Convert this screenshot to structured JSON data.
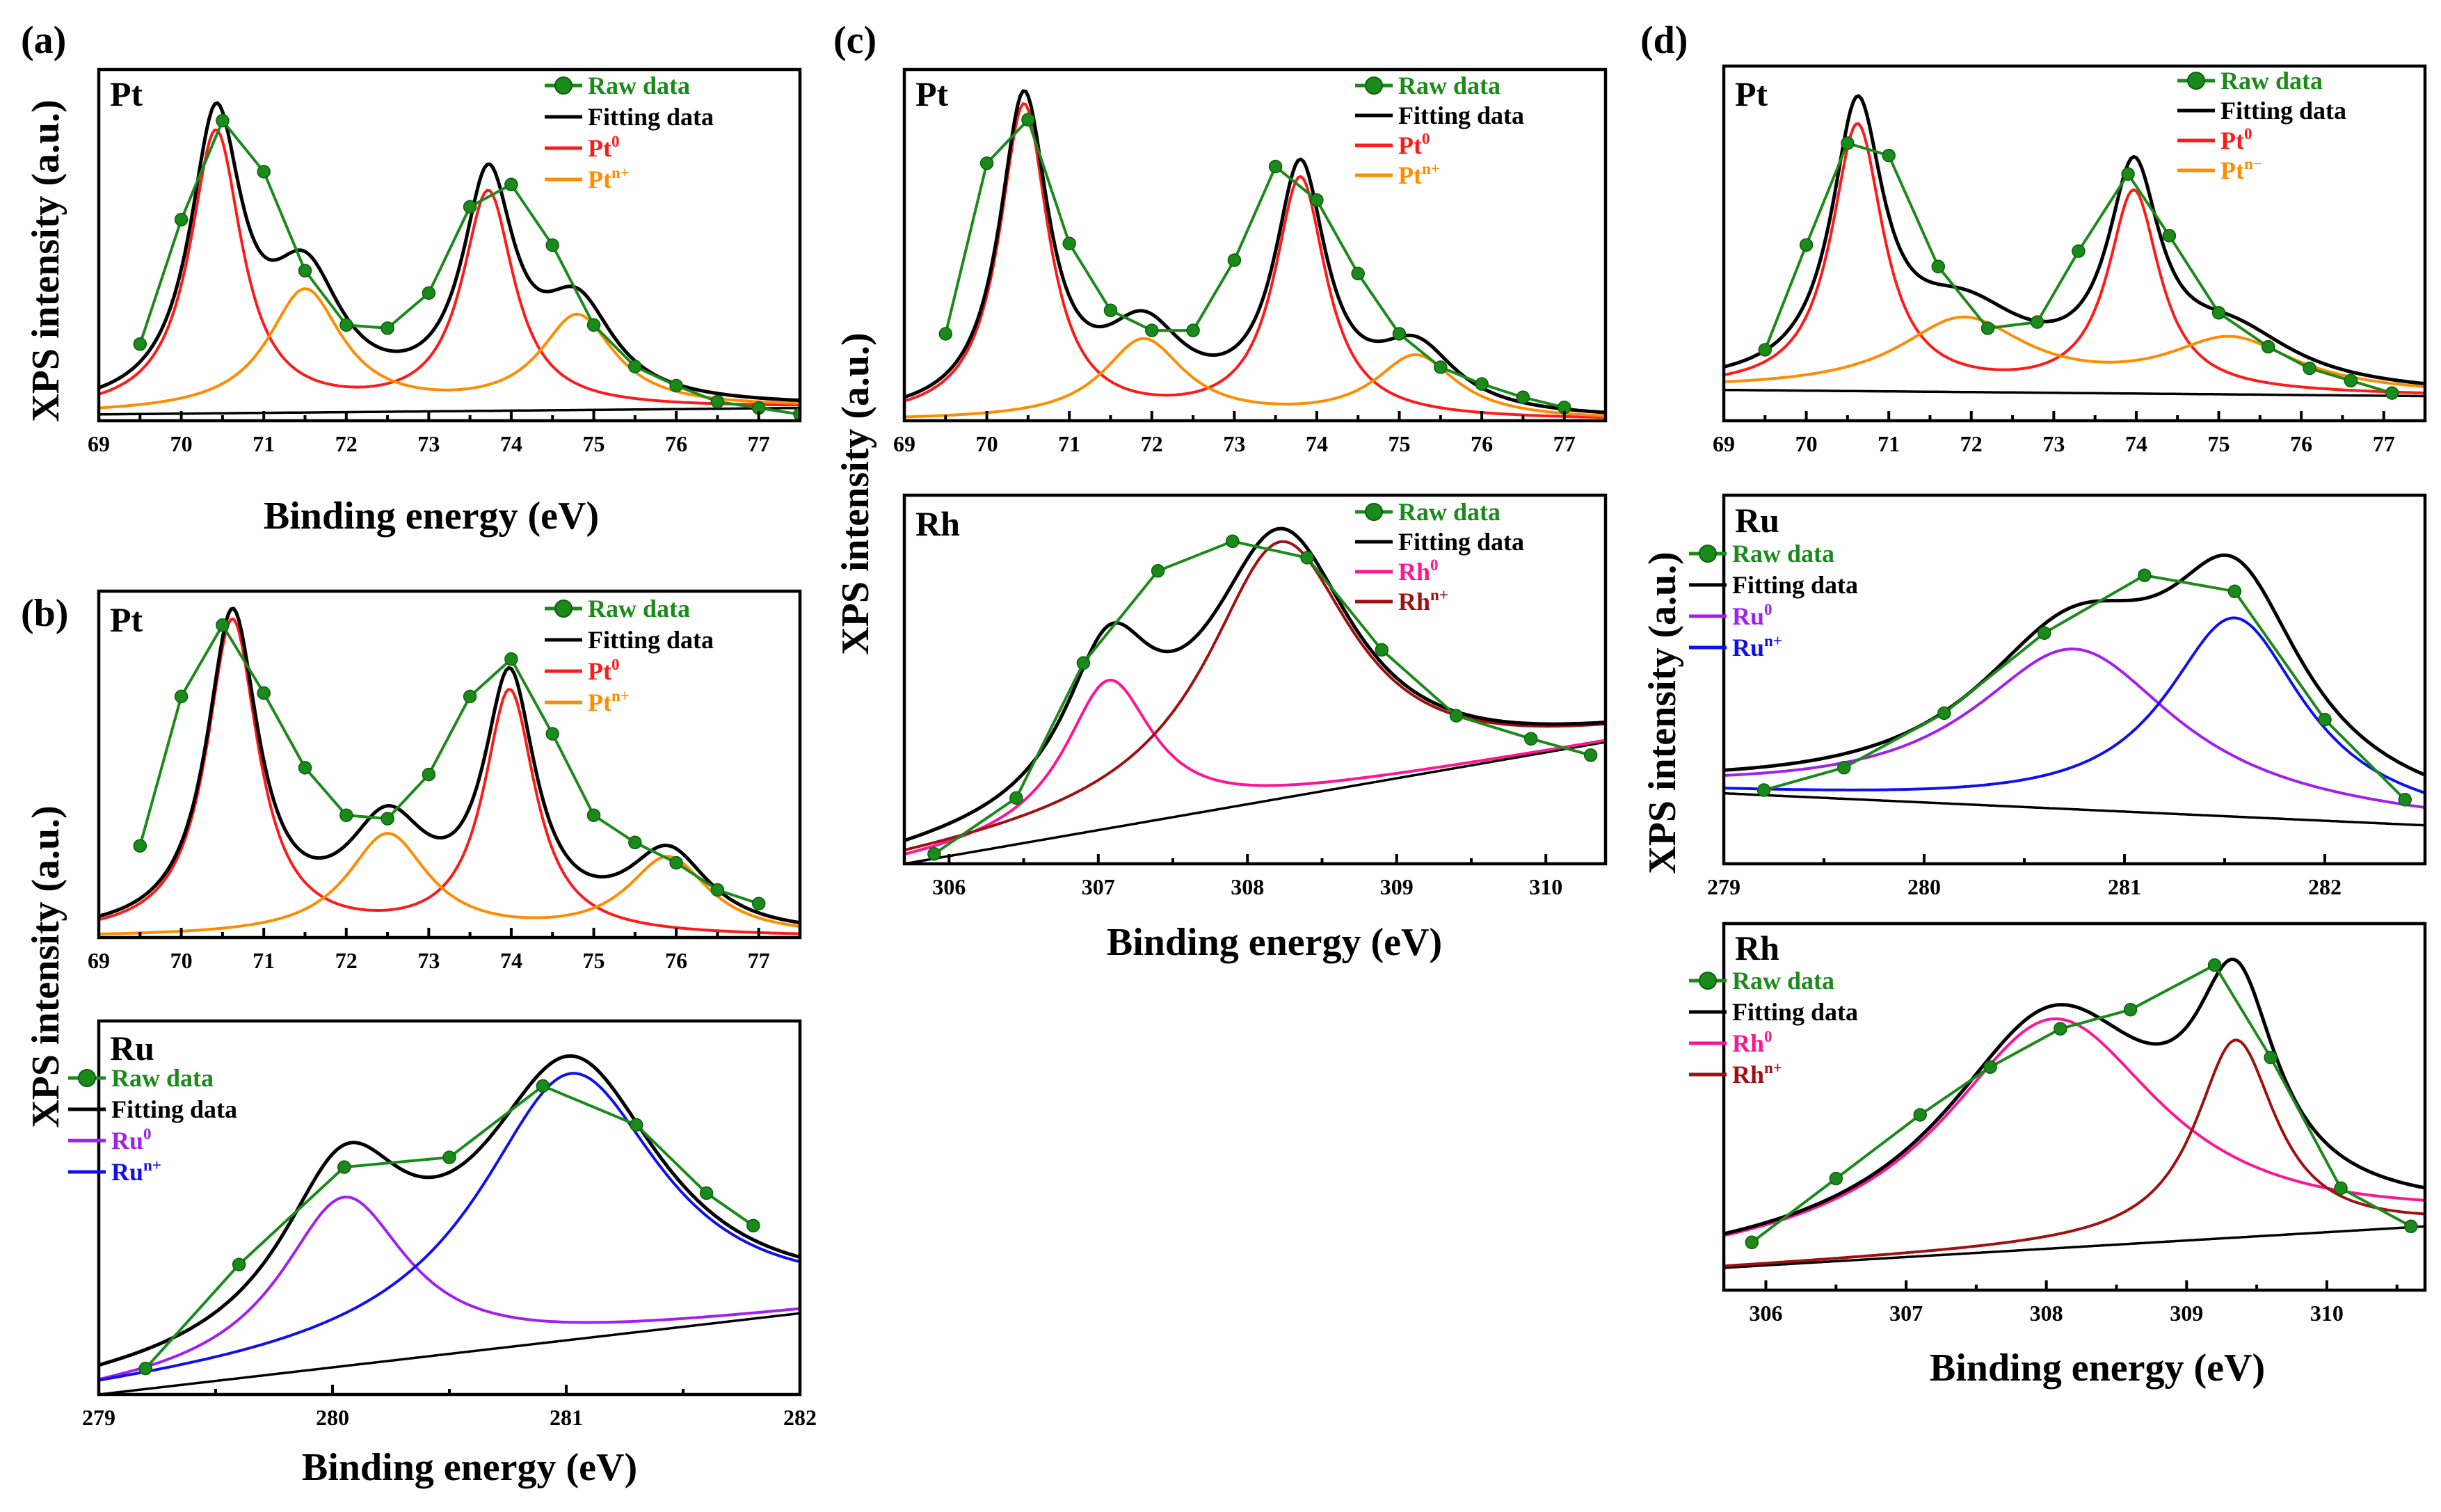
{
  "panel_labels": [
    "(a)",
    "(b)",
    "(c)",
    "(d)"
  ],
  "axis_titles": {
    "ylabel": "XPS intensity (a.u.)",
    "xlabel": "Binding energy (eV)"
  },
  "legend": {
    "raw": "Raw data",
    "fit": "Fitting data",
    "pt0": "Pt",
    "pt0_sup": "0",
    "ptn": "Pt",
    "ptn_sup": "n+",
    "ptn_d": "Pt",
    "ptn_d_sup": "n−",
    "ru0": "Ru",
    "ru0_sup": "0",
    "run": "Ru",
    "run_sup": "n+",
    "rh0": "Rh",
    "rh0_sup": "0",
    "rhn": "Rh",
    "rhn_sup": "n+"
  },
  "colors": {
    "raw": "#1a8a1a",
    "fit": "#000000",
    "pt0": "#ff1a1a",
    "ptn": "#ff8c00",
    "ru0": "#a020f0",
    "run": "#1010ee",
    "rh0": "#ff1493",
    "rhn": "#a01010",
    "baseline": "#000000"
  },
  "chart_data": [
    {
      "id": "a_pt",
      "panel": "(a)",
      "element": "Pt",
      "type": "line",
      "xlabel": "Binding energy (eV)",
      "ylabel": "XPS intensity (a.u.)",
      "xlim": [
        69,
        77.5
      ],
      "ylim": [
        0,
        1.1
      ],
      "xticks": [
        69,
        70,
        71,
        72,
        73,
        74,
        75,
        76,
        77
      ],
      "baseline": [
        0.02,
        0.04
      ],
      "components": [
        {
          "key": "pt0",
          "peaks": [
            {
              "c": 70.42,
              "a": 0.88,
              "w": 0.38
            },
            {
              "c": 73.72,
              "a": 0.68,
              "w": 0.38
            }
          ]
        },
        {
          "key": "ptn",
          "peaks": [
            {
              "c": 71.5,
              "a": 0.38,
              "w": 0.55
            },
            {
              "c": 74.8,
              "a": 0.29,
              "w": 0.55
            }
          ]
        }
      ],
      "raw_points": [
        [
          69.5,
          0.24
        ],
        [
          70.0,
          0.63
        ],
        [
          70.5,
          0.94
        ],
        [
          71.0,
          0.78
        ],
        [
          71.5,
          0.47
        ],
        [
          72.0,
          0.3
        ],
        [
          72.5,
          0.29
        ],
        [
          73.0,
          0.4
        ],
        [
          73.5,
          0.67
        ],
        [
          74.0,
          0.74
        ],
        [
          74.5,
          0.55
        ],
        [
          75.0,
          0.3
        ],
        [
          75.5,
          0.17
        ],
        [
          76.0,
          0.11
        ],
        [
          76.5,
          0.06
        ],
        [
          77.0,
          0.04
        ],
        [
          77.5,
          0.02
        ]
      ]
    },
    {
      "id": "b_pt",
      "panel": "(b)",
      "element": "Pt",
      "type": "line",
      "xlabel": "",
      "ylabel": "XPS intensity (a.u.)",
      "xlim": [
        69,
        77.5
      ],
      "ylim": [
        0,
        1.02
      ],
      "xticks": [
        69,
        70,
        71,
        72,
        73,
        74,
        75,
        76,
        77
      ],
      "baseline": [
        0.0,
        0.0
      ],
      "components": [
        {
          "key": "pt0",
          "peaks": [
            {
              "c": 70.62,
              "a": 0.93,
              "w": 0.38
            },
            {
              "c": 73.98,
              "a": 0.72,
              "w": 0.38
            }
          ]
        },
        {
          "key": "ptn",
          "peaks": [
            {
              "c": 72.5,
              "a": 0.3,
              "w": 0.6
            },
            {
              "c": 75.9,
              "a": 0.23,
              "w": 0.6
            }
          ]
        }
      ],
      "raw_points": [
        [
          69.5,
          0.27
        ],
        [
          70.0,
          0.71
        ],
        [
          70.5,
          0.92
        ],
        [
          71.0,
          0.72
        ],
        [
          71.5,
          0.5
        ],
        [
          72.0,
          0.36
        ],
        [
          72.5,
          0.35
        ],
        [
          73.0,
          0.48
        ],
        [
          73.5,
          0.71
        ],
        [
          74.0,
          0.82
        ],
        [
          74.5,
          0.6
        ],
        [
          75.0,
          0.36
        ],
        [
          75.5,
          0.28
        ],
        [
          76.0,
          0.22
        ],
        [
          76.5,
          0.14
        ],
        [
          77.0,
          0.1
        ]
      ]
    },
    {
      "id": "b_ru",
      "panel": "(b)",
      "element": "Ru",
      "type": "line",
      "xlabel": "Binding energy (eV)",
      "ylabel": "",
      "xlim": [
        279,
        282
      ],
      "ylim": [
        0,
        1.15
      ],
      "xticks": [
        279,
        280,
        281,
        282
      ],
      "baseline": [
        0.0,
        0.25
      ],
      "components": [
        {
          "key": "ru0",
          "peaks": [
            {
              "c": 280.05,
              "a": 0.52,
              "w": 0.33
            }
          ]
        },
        {
          "key": "run",
          "peaks": [
            {
              "c": 281.02,
              "a": 0.82,
              "w": 0.48
            }
          ]
        }
      ],
      "raw_points": [
        [
          279.2,
          0.08
        ],
        [
          279.6,
          0.4
        ],
        [
          280.05,
          0.7
        ],
        [
          280.5,
          0.73
        ],
        [
          280.9,
          0.95
        ],
        [
          281.3,
          0.83
        ],
        [
          281.6,
          0.62
        ],
        [
          281.8,
          0.52
        ]
      ]
    },
    {
      "id": "c_pt",
      "panel": "(c)",
      "element": "Pt",
      "type": "line",
      "xlabel": "",
      "ylabel": "XPS intensity (a.u.)",
      "xlim": [
        69,
        77.5
      ],
      "ylim": [
        0,
        1.05
      ],
      "xticks": [
        69,
        70,
        71,
        72,
        73,
        74,
        75,
        76,
        77
      ],
      "baseline": [
        0.0,
        0.0
      ],
      "components": [
        {
          "key": "pt0",
          "peaks": [
            {
              "c": 70.45,
              "a": 0.94,
              "w": 0.36
            },
            {
              "c": 73.8,
              "a": 0.72,
              "w": 0.38
            }
          ]
        },
        {
          "key": "ptn",
          "peaks": [
            {
              "c": 71.9,
              "a": 0.24,
              "w": 0.6
            },
            {
              "c": 75.2,
              "a": 0.19,
              "w": 0.6
            }
          ]
        }
      ],
      "raw_points": [
        [
          69.5,
          0.26
        ],
        [
          70.0,
          0.77
        ],
        [
          70.5,
          0.9
        ],
        [
          71.0,
          0.53
        ],
        [
          71.5,
          0.33
        ],
        [
          72.0,
          0.27
        ],
        [
          72.5,
          0.27
        ],
        [
          73.0,
          0.48
        ],
        [
          73.5,
          0.76
        ],
        [
          74.0,
          0.66
        ],
        [
          74.5,
          0.44
        ],
        [
          75.0,
          0.26
        ],
        [
          75.5,
          0.16
        ],
        [
          76.0,
          0.11
        ],
        [
          76.5,
          0.07
        ],
        [
          77.0,
          0.04
        ]
      ]
    },
    {
      "id": "c_rh",
      "panel": "(c)",
      "element": "Rh",
      "type": "line",
      "xlabel": "Binding energy (eV)",
      "ylabel": "",
      "xlim": [
        305.7,
        310.4
      ],
      "ylim": [
        0,
        1.12
      ],
      "xticks": [
        306,
        307,
        308,
        309,
        310
      ],
      "baseline": [
        0.0,
        0.37
      ],
      "components": [
        {
          "key": "rh0",
          "peaks": [
            {
              "c": 307.07,
              "a": 0.45,
              "w": 0.36
            }
          ]
        },
        {
          "key": "rhn",
          "peaks": [
            {
              "c": 308.22,
              "a": 0.78,
              "w": 0.6
            }
          ]
        }
      ],
      "raw_points": [
        [
          305.9,
          0.03
        ],
        [
          306.45,
          0.2
        ],
        [
          306.9,
          0.61
        ],
        [
          307.4,
          0.89
        ],
        [
          307.9,
          0.98
        ],
        [
          308.4,
          0.93
        ],
        [
          308.9,
          0.65
        ],
        [
          309.4,
          0.45
        ],
        [
          309.9,
          0.38
        ],
        [
          310.3,
          0.33
        ]
      ]
    },
    {
      "id": "d_pt",
      "panel": "(d)",
      "element": "Pt",
      "type": "line",
      "xlabel": "",
      "ylabel": "",
      "xlim": [
        69,
        77.5
      ],
      "ylim": [
        0,
        1.15
      ],
      "xticks": [
        69,
        70,
        71,
        72,
        73,
        74,
        75,
        76,
        77
      ],
      "baseline": [
        0.1,
        0.08
      ],
      "components": [
        {
          "key": "pt0",
          "peaks": [
            {
              "c": 70.62,
              "a": 0.86,
              "w": 0.38
            },
            {
              "c": 73.97,
              "a": 0.65,
              "w": 0.38
            }
          ]
        },
        {
          "key": "ptn",
          "peaks": [
            {
              "c": 71.9,
              "a": 0.23,
              "w": 0.95
            },
            {
              "c": 75.15,
              "a": 0.17,
              "w": 0.95
            }
          ]
        }
      ],
      "raw_points": [
        [
          69.5,
          0.23
        ],
        [
          70.0,
          0.57
        ],
        [
          70.5,
          0.9
        ],
        [
          71.0,
          0.86
        ],
        [
          71.6,
          0.5
        ],
        [
          72.2,
          0.3
        ],
        [
          72.8,
          0.32
        ],
        [
          73.3,
          0.55
        ],
        [
          73.9,
          0.8
        ],
        [
          74.4,
          0.6
        ],
        [
          75.0,
          0.35
        ],
        [
          75.6,
          0.24
        ],
        [
          76.1,
          0.17
        ],
        [
          76.6,
          0.13
        ],
        [
          77.1,
          0.09
        ]
      ]
    },
    {
      "id": "d_ru",
      "panel": "(d)",
      "element": "Ru",
      "type": "line",
      "xlabel": "",
      "ylabel": "XPS intensity (a.u.)",
      "xlim": [
        279,
        282.5
      ],
      "ylim": [
        0,
        1.15
      ],
      "xticks": [
        279,
        280,
        281,
        282
      ],
      "baseline": [
        0.22,
        0.12
      ],
      "components": [
        {
          "key": "ru0",
          "peaks": [
            {
              "c": 280.75,
              "a": 0.5,
              "w": 0.62
            }
          ]
        },
        {
          "key": "run",
          "peaks": [
            {
              "c": 281.55,
              "a": 0.62,
              "w": 0.42
            }
          ]
        }
      ],
      "raw_points": [
        [
          279.2,
          0.23
        ],
        [
          279.6,
          0.3
        ],
        [
          280.1,
          0.47
        ],
        [
          280.6,
          0.72
        ],
        [
          281.1,
          0.9
        ],
        [
          281.55,
          0.85
        ],
        [
          282.0,
          0.45
        ],
        [
          282.4,
          0.2
        ]
      ]
    },
    {
      "id": "d_rh",
      "panel": "(d)",
      "element": "Rh",
      "type": "line",
      "xlabel": "Binding energy (eV)",
      "ylabel": "",
      "xlim": [
        305.7,
        310.7
      ],
      "ylim": [
        0,
        1.15
      ],
      "xticks": [
        306,
        307,
        308,
        309,
        310
      ],
      "baseline": [
        0.07,
        0.2
      ],
      "components": [
        {
          "key": "rh0",
          "peaks": [
            {
              "c": 308.05,
              "a": 0.72,
              "w": 0.95
            }
          ]
        },
        {
          "key": "rhn",
          "peaks": [
            {
              "c": 309.35,
              "a": 0.62,
              "w": 0.35
            }
          ]
        }
      ],
      "raw_points": [
        [
          305.9,
          0.15
        ],
        [
          306.5,
          0.35
        ],
        [
          307.1,
          0.55
        ],
        [
          307.6,
          0.7
        ],
        [
          308.1,
          0.82
        ],
        [
          308.6,
          0.88
        ],
        [
          309.2,
          1.02
        ],
        [
          309.6,
          0.73
        ],
        [
          310.1,
          0.32
        ],
        [
          310.6,
          0.2
        ]
      ]
    }
  ]
}
